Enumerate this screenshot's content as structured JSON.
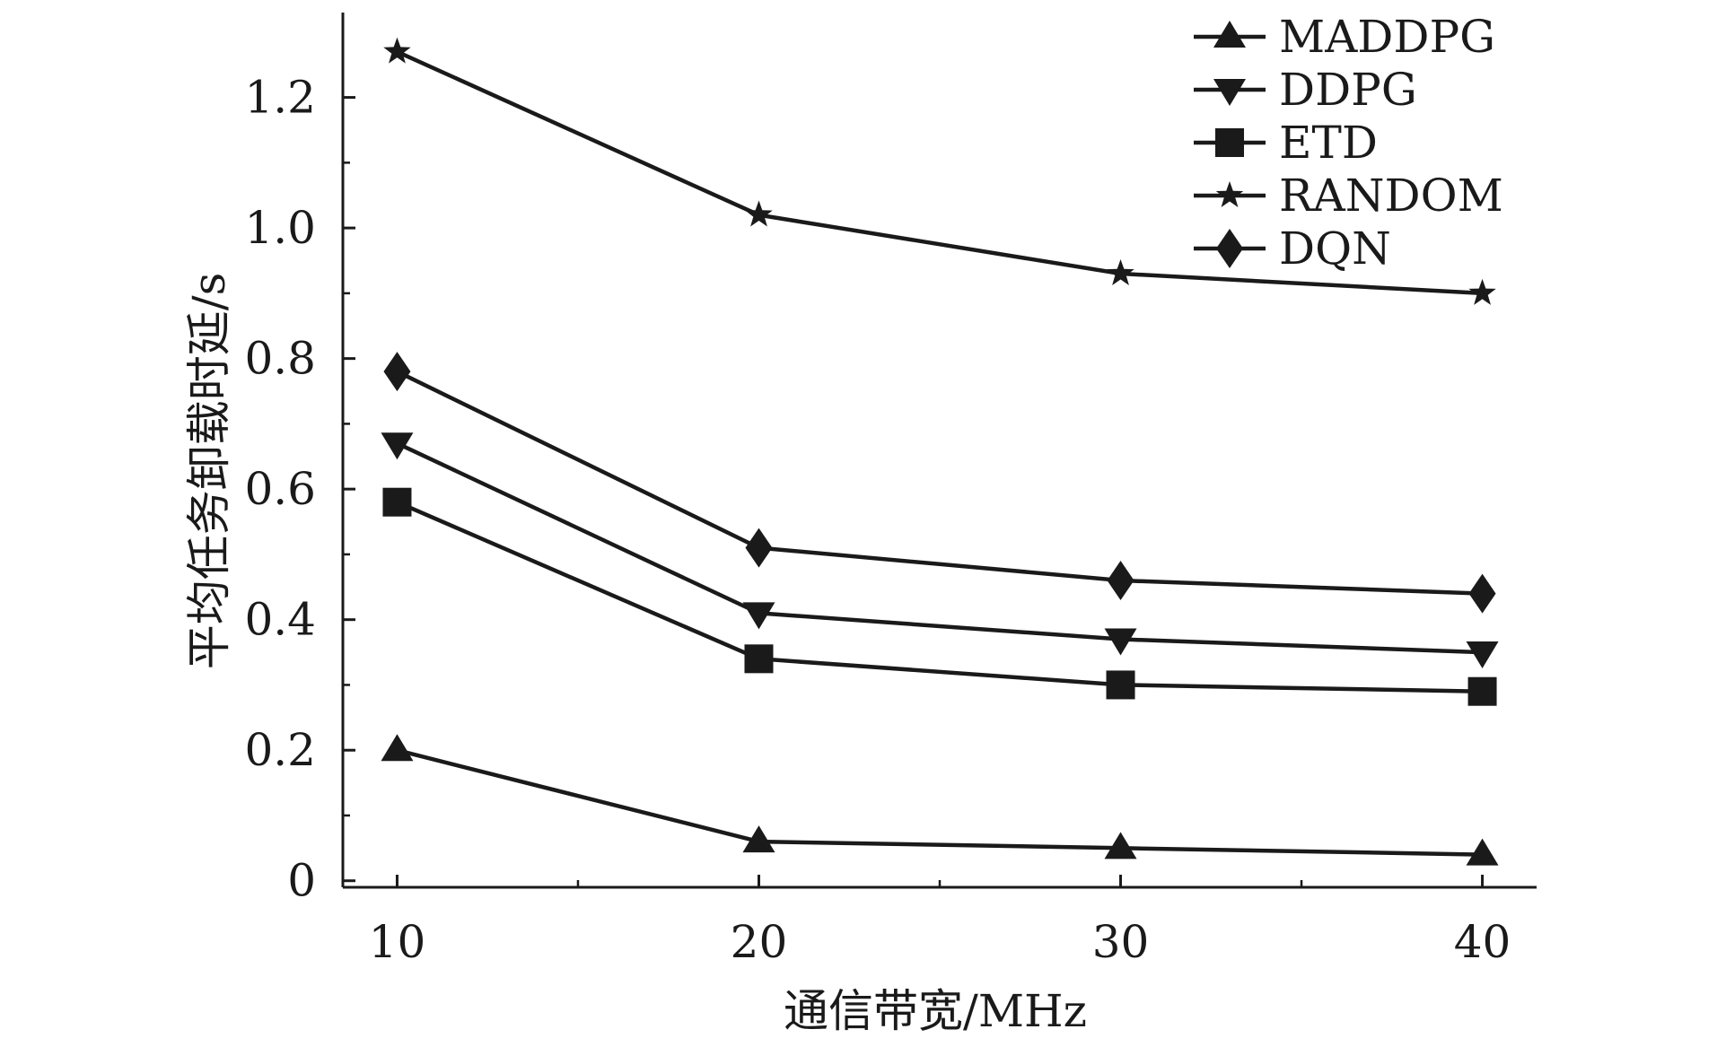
{
  "chart_data": {
    "type": "line",
    "xlabel": "通信带宽/MHz",
    "ylabel": "平均任务卸载时延/s",
    "x": [
      10,
      20,
      30,
      40
    ],
    "xticks": [
      "10",
      "20",
      "30",
      "40"
    ],
    "xlim": [
      8.5,
      41.5
    ],
    "ylim": [
      -0.01,
      1.33
    ],
    "yticks": [
      {
        "value": 0,
        "label": "0"
      },
      {
        "value": 0.2,
        "label": "0.2"
      },
      {
        "value": 0.4,
        "label": "0.4"
      },
      {
        "value": 0.6,
        "label": "0.6"
      },
      {
        "value": 0.8,
        "label": "0.8"
      },
      {
        "value": 1.0,
        "label": "1.0"
      },
      {
        "value": 1.2,
        "label": "1.2"
      }
    ],
    "grid": false,
    "legend_position": "top-right",
    "series": [
      {
        "name": "MADDPG",
        "marker": "triangle-up",
        "values": [
          0.2,
          0.06,
          0.05,
          0.04
        ]
      },
      {
        "name": "DDPG",
        "marker": "triangle-down",
        "values": [
          0.67,
          0.41,
          0.37,
          0.35
        ]
      },
      {
        "name": "ETD",
        "marker": "square",
        "values": [
          0.58,
          0.34,
          0.3,
          0.29
        ]
      },
      {
        "name": "RANDOM",
        "marker": "star",
        "values": [
          1.27,
          1.02,
          0.93,
          0.9
        ]
      },
      {
        "name": "DQN",
        "marker": "diamond",
        "values": [
          0.78,
          0.51,
          0.46,
          0.44
        ]
      }
    ],
    "colors": {
      "line": "#1a1a1a",
      "marker": "#1a1a1a"
    }
  }
}
